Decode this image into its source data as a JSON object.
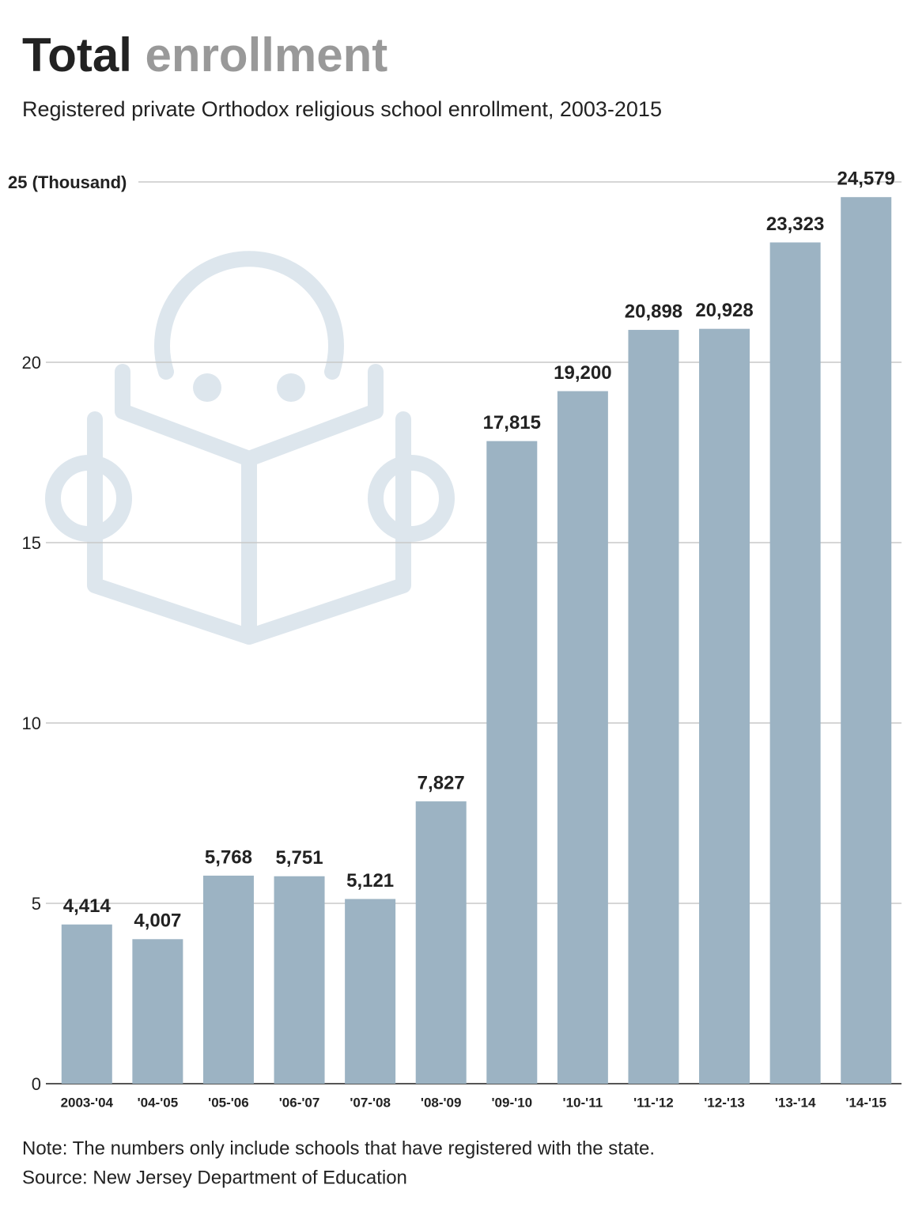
{
  "chart_data": {
    "type": "bar",
    "title": [
      "Total",
      "enrollment"
    ],
    "subtitle": "Registered private Orthodox religious school enrollment, 2003-2015",
    "categories": [
      "2003-'04",
      "'04-'05",
      "'05-'06",
      "'06-'07",
      "'07-'08",
      "'08-'09",
      "'09-'10",
      "'10-'11",
      "'11-'12",
      "'12-'13",
      "'13-'14",
      "'14-'15"
    ],
    "values": [
      4.414,
      4.007,
      5.768,
      5.751,
      5.121,
      7.827,
      17.815,
      19.2,
      20.898,
      20.928,
      23.323,
      24.579
    ],
    "value_labels": [
      "4,414",
      "4,007",
      "5,768",
      "5,751",
      "5,121",
      "7,827",
      "17,815",
      "19,200",
      "20,898",
      "20,928",
      "23,323",
      "24,579"
    ],
    "color": "#9cb3c3",
    "ylim": [
      0,
      25
    ],
    "yticks": [
      0,
      5,
      10,
      15,
      20,
      {
        "value": 25,
        "label": "25 (Thousand)"
      }
    ],
    "grid": true,
    "note": "Note: The numbers only include schools that have registered with the state.",
    "source": "Source: New Jersey Department of Education"
  }
}
